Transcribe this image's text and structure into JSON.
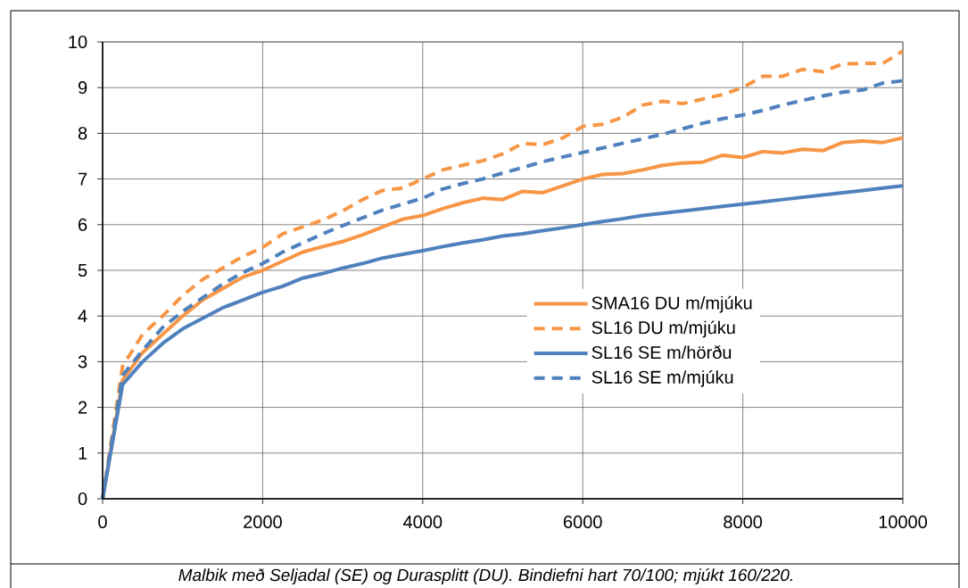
{
  "chart_data": {
    "type": "line",
    "x": [
      0,
      250,
      500,
      750,
      1000,
      1250,
      1500,
      1750,
      2000,
      2250,
      2500,
      2750,
      3000,
      3250,
      3500,
      3750,
      4000,
      4250,
      4500,
      4750,
      5000,
      5250,
      5500,
      5750,
      6000,
      6250,
      6500,
      6750,
      7000,
      7250,
      7500,
      7750,
      8000,
      8250,
      8500,
      8750,
      9000,
      9250,
      9500,
      9750,
      10000
    ],
    "series": [
      {
        "name": "SMA16 DU m/mjúku",
        "color": "#f79646",
        "line_style": "solid",
        "values": [
          0,
          2.6,
          3.2,
          3.6,
          4.0,
          4.35,
          4.6,
          4.85,
          5.0,
          5.2,
          5.4,
          5.52,
          5.63,
          5.78,
          5.95,
          6.12,
          6.2,
          6.35,
          6.48,
          6.58,
          6.55,
          6.73,
          6.7,
          6.85,
          7.0,
          7.1,
          7.12,
          7.2,
          7.3,
          7.35,
          7.37,
          7.52,
          7.47,
          7.6,
          7.57,
          7.65,
          7.62,
          7.8,
          7.83,
          7.8,
          7.9
        ]
      },
      {
        "name": "SL16 DU m/mjúku",
        "color": "#f79646",
        "line_style": "dashed",
        "values": [
          0,
          2.9,
          3.6,
          4.0,
          4.45,
          4.8,
          5.05,
          5.3,
          5.5,
          5.8,
          5.95,
          6.1,
          6.3,
          6.55,
          6.75,
          6.8,
          7.0,
          7.2,
          7.3,
          7.4,
          7.55,
          7.78,
          7.75,
          7.9,
          8.15,
          8.2,
          8.35,
          8.62,
          8.7,
          8.65,
          8.75,
          8.85,
          9.0,
          9.25,
          9.25,
          9.4,
          9.35,
          9.52,
          9.53,
          9.53,
          9.8
        ]
      },
      {
        "name": "SL16 SE m/hörðu",
        "color": "#4f81bd",
        "line_style": "solid",
        "values": [
          0,
          2.5,
          3.0,
          3.4,
          3.72,
          3.95,
          4.18,
          4.35,
          4.52,
          4.65,
          4.83,
          4.93,
          5.05,
          5.15,
          5.27,
          5.35,
          5.43,
          5.52,
          5.6,
          5.67,
          5.75,
          5.8,
          5.87,
          5.93,
          6.0,
          6.07,
          6.13,
          6.2,
          6.25,
          6.3,
          6.35,
          6.4,
          6.45,
          6.5,
          6.55,
          6.6,
          6.65,
          6.7,
          6.75,
          6.8,
          6.85
        ]
      },
      {
        "name": "SL16 SE m/mjúku",
        "color": "#4f81bd",
        "line_style": "dashed",
        "values": [
          0,
          2.7,
          3.25,
          3.75,
          4.1,
          4.4,
          4.7,
          4.95,
          5.15,
          5.4,
          5.6,
          5.8,
          5.98,
          6.15,
          6.32,
          6.45,
          6.58,
          6.78,
          6.9,
          7.0,
          7.13,
          7.25,
          7.38,
          7.48,
          7.58,
          7.68,
          7.78,
          7.88,
          7.98,
          8.1,
          8.22,
          8.32,
          8.4,
          8.5,
          8.62,
          8.72,
          8.82,
          8.9,
          8.95,
          9.1,
          9.15
        ]
      }
    ],
    "xlim": [
      0,
      10000
    ],
    "xticks": [
      0,
      2000,
      4000,
      6000,
      8000,
      10000
    ],
    "ylim": [
      0,
      10
    ],
    "yticks": [
      0,
      1,
      2,
      3,
      4,
      5,
      6,
      7,
      8,
      9,
      10
    ],
    "grid": true,
    "legend": "right",
    "marker": "none",
    "annotations": [
      "Malbik með Seljadal (SE) og Durasplitt (DU). Bindiefni hart 70/100; mjúkt 160/220."
    ]
  }
}
